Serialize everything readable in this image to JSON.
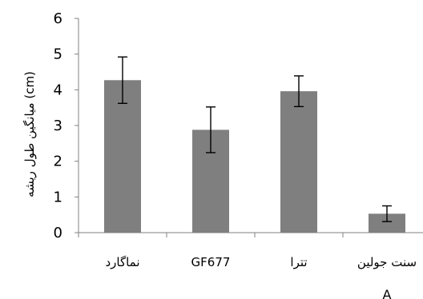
{
  "chart_data": {
    "type": "bar",
    "categories": [
      "نماگارد",
      "GF677",
      "تترا",
      "سنت جولین"
    ],
    "values": [
      4.27,
      2.88,
      3.96,
      0.53
    ],
    "error": [
      0.65,
      0.64,
      0.43,
      0.22
    ],
    "ylabel": "میانگین طول ریشه (cm)",
    "ylim": [
      0,
      6
    ],
    "yticks": [
      "0",
      "1",
      "2",
      "3",
      "4",
      "5",
      "6"
    ],
    "panel_label": "A",
    "grid": false,
    "legend": "none",
    "colors": {
      "bar": "#7f7f7f",
      "error_bar": "#000000",
      "axis": "#808080"
    }
  }
}
